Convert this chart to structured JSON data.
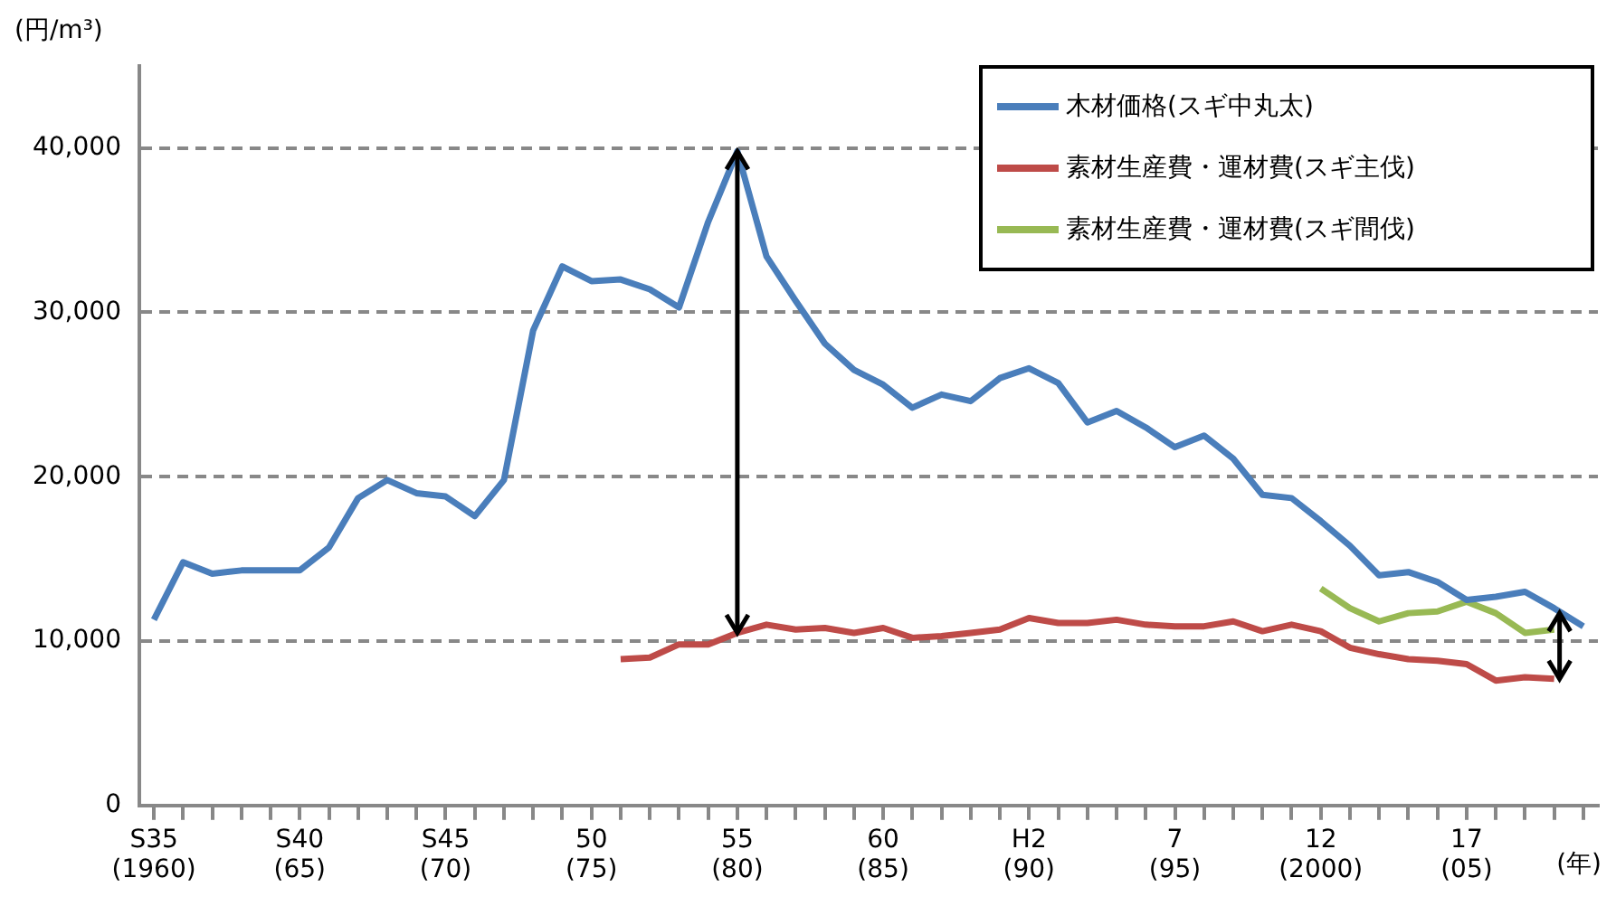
{
  "chart_data": {
    "type": "line",
    "ylabel": "(円/m³)",
    "xlabel": "(年)",
    "categories": [
      "S35\n(1960)",
      null,
      null,
      null,
      null,
      "S40\n(65)",
      null,
      null,
      null,
      null,
      "S45\n(70)",
      null,
      null,
      null,
      null,
      "50\n(75)",
      null,
      null,
      null,
      null,
      "55\n(80)",
      null,
      null,
      null,
      null,
      "60\n(85)",
      null,
      null,
      null,
      null,
      "H2\n(90)",
      null,
      null,
      null,
      null,
      "7\n(95)",
      null,
      null,
      null,
      null,
      "12\n(2000)",
      null,
      null,
      null,
      null,
      "17\n(05)",
      null,
      null,
      null,
      null
    ],
    "series": [
      {
        "name": "木材価格(スギ中丸太)",
        "color": "#4a7ebb",
        "values": [
          11300,
          14800,
          14100,
          14300,
          14300,
          14300,
          15700,
          18700,
          19800,
          19000,
          18800,
          17600,
          19800,
          28900,
          32800,
          31900,
          32000,
          31400,
          30300,
          35500,
          39800,
          33400,
          30700,
          28100,
          26500,
          25600,
          24200,
          25000,
          24600,
          26000,
          26600,
          25700,
          23300,
          24000,
          23000,
          21800,
          22500,
          21100,
          18900,
          18700,
          17300,
          15800,
          14000,
          14200,
          13600,
          12500,
          12700,
          13000,
          12000,
          10900
        ]
      },
      {
        "name": "素材生産費・運材費(スギ主伐)",
        "color": "#be4b48",
        "values": [
          null,
          null,
          null,
          null,
          null,
          null,
          null,
          null,
          null,
          null,
          null,
          null,
          null,
          null,
          null,
          null,
          8900,
          9000,
          9800,
          9800,
          10500,
          11000,
          10700,
          10800,
          10500,
          10800,
          10200,
          10300,
          10500,
          10700,
          11400,
          11100,
          11100,
          11300,
          11000,
          10900,
          10900,
          11200,
          10600,
          11000,
          10600,
          9600,
          9200,
          8900,
          8800,
          8600,
          7600,
          7800,
          7700,
          null
        ]
      },
      {
        "name": "素材生産費・運材費(スギ間伐)",
        "color": "#98b954",
        "values": [
          null,
          null,
          null,
          null,
          null,
          null,
          null,
          null,
          null,
          null,
          null,
          null,
          null,
          null,
          null,
          null,
          null,
          null,
          null,
          null,
          null,
          null,
          null,
          null,
          null,
          null,
          null,
          null,
          null,
          null,
          null,
          null,
          null,
          null,
          null,
          null,
          null,
          null,
          null,
          null,
          13200,
          12000,
          11200,
          11700,
          11800,
          12400,
          11700,
          10500,
          10700,
          null
        ]
      }
    ],
    "ylim": [
      0,
      45000
    ],
    "yticks": [
      {
        "value": 0,
        "label": "0"
      },
      {
        "value": 10000,
        "label": "10,000"
      },
      {
        "value": 20000,
        "label": "20,000"
      },
      {
        "value": 30000,
        "label": "30,000"
      },
      {
        "value": 40000,
        "label": "40,000"
      }
    ],
    "grid": "y",
    "legend": "top right",
    "marker": "none",
    "line_style": "solid"
  }
}
